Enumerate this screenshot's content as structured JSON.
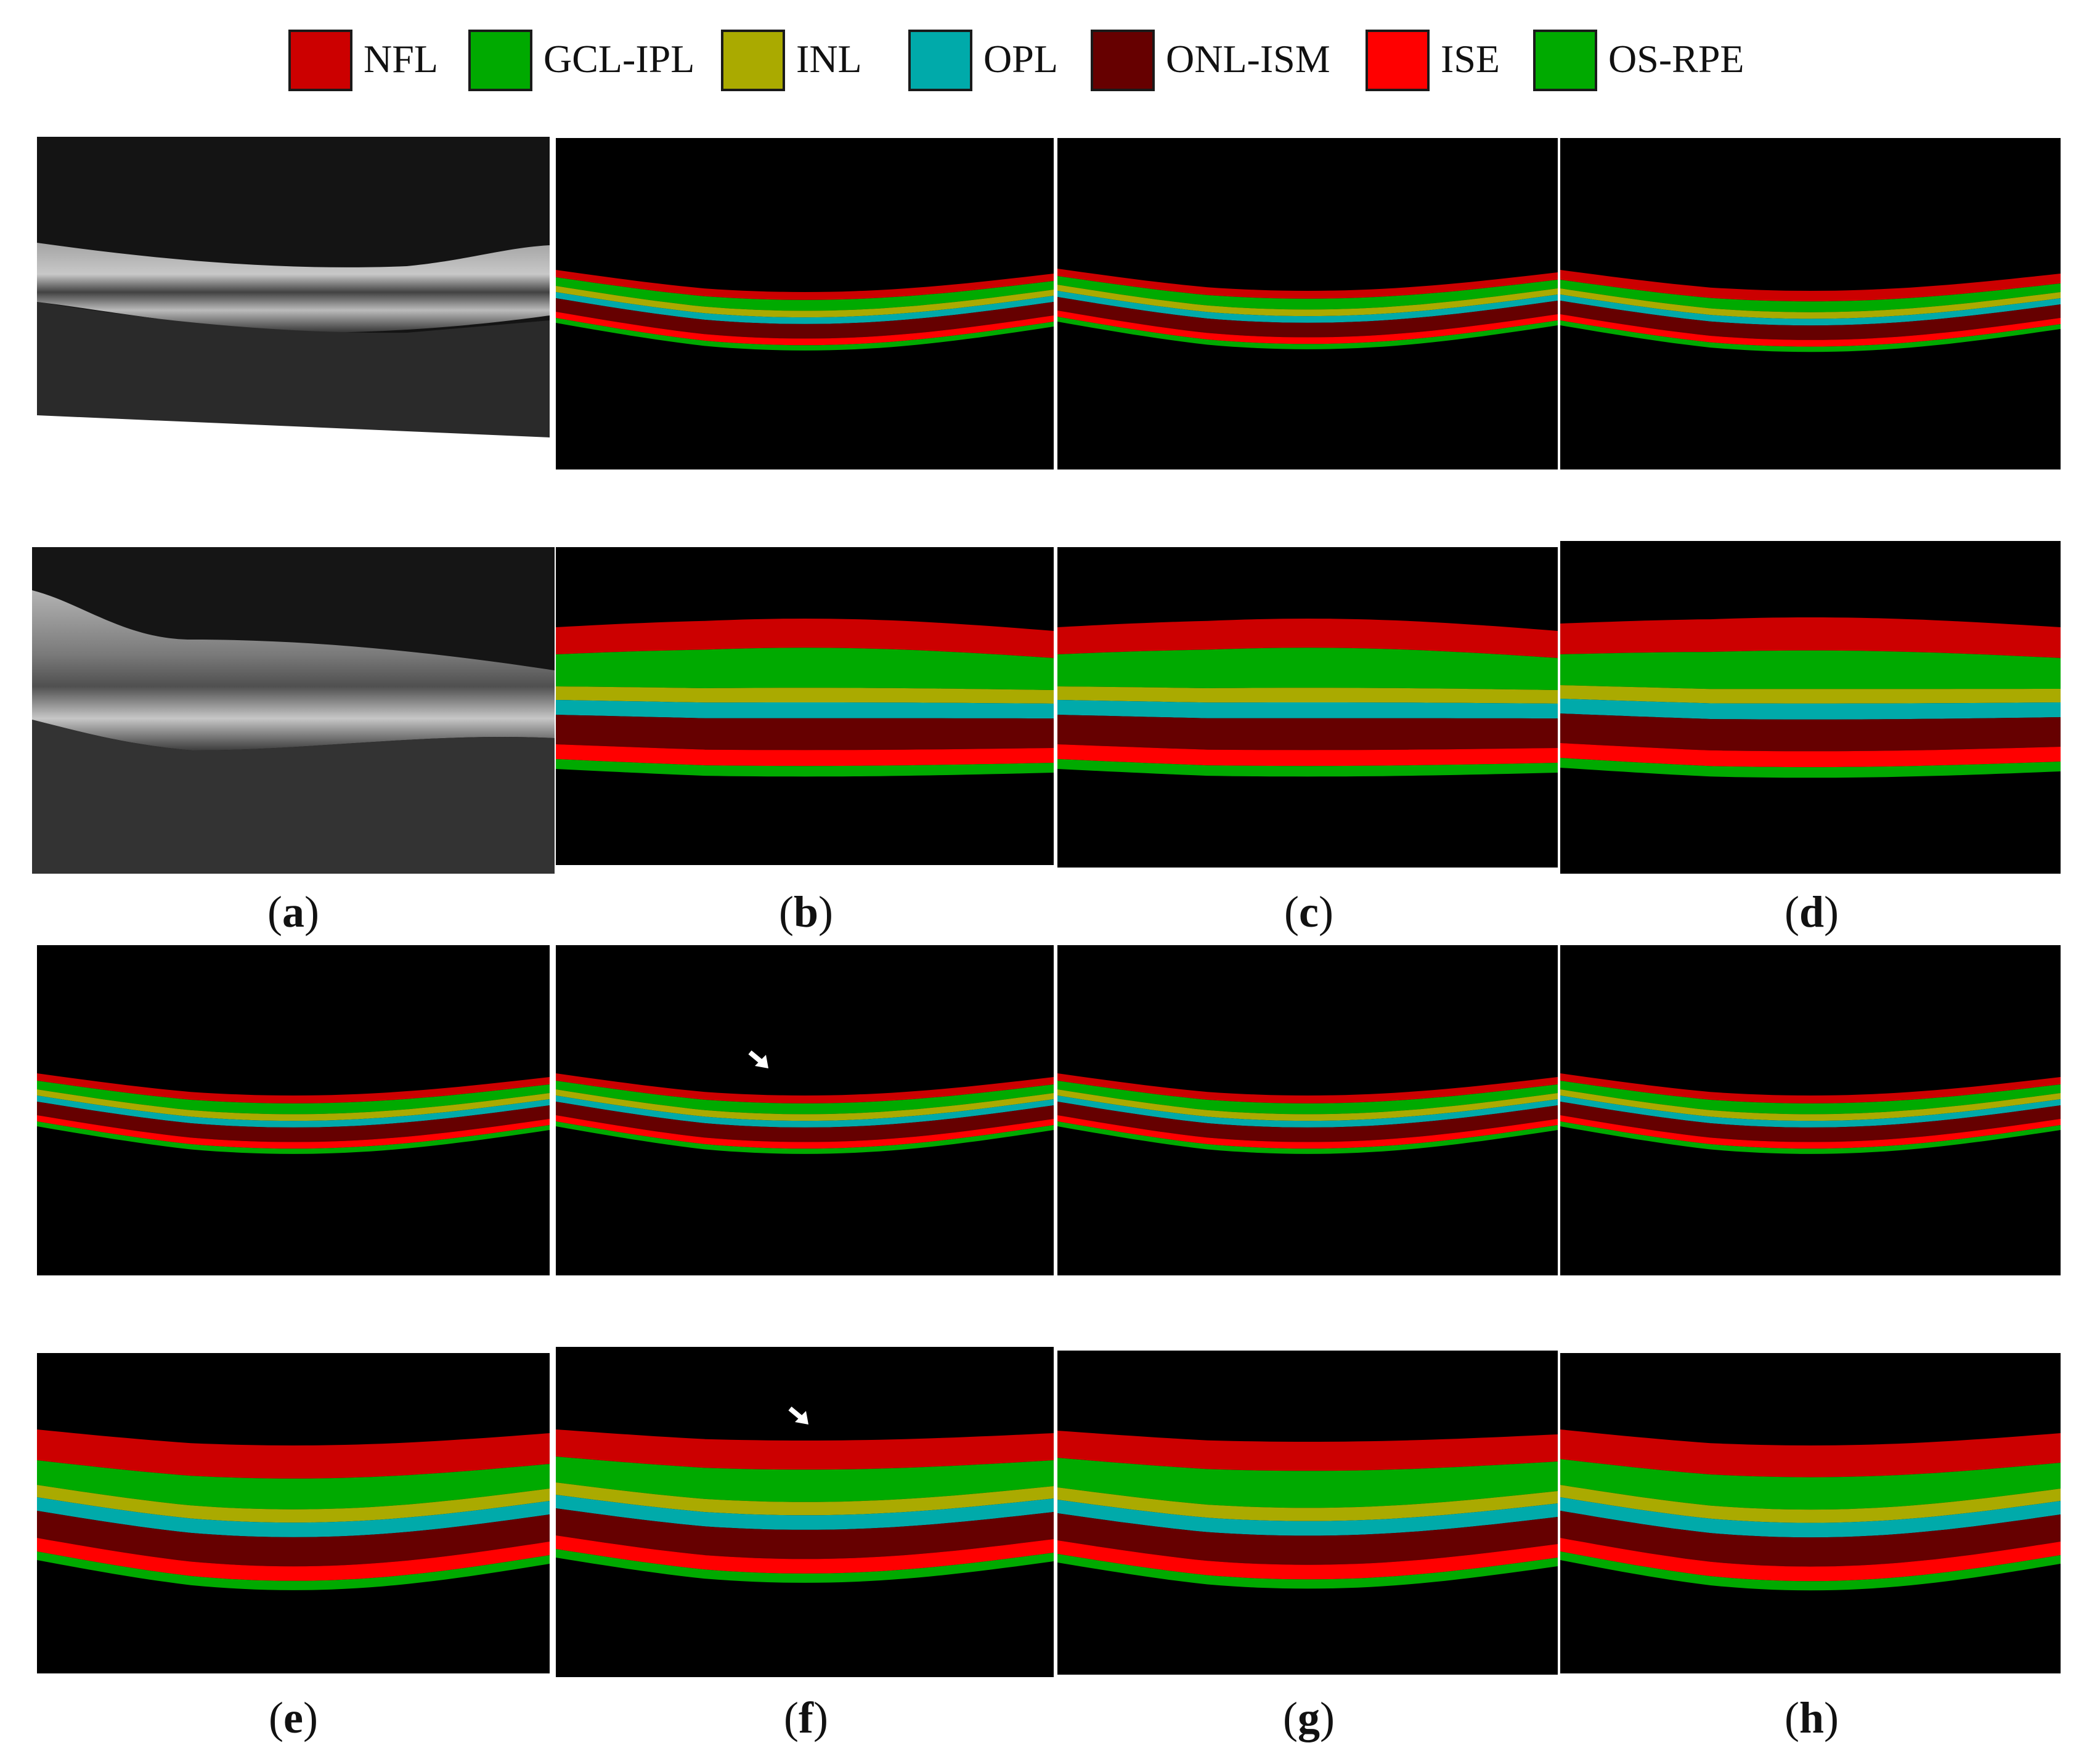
{
  "legend": [
    {
      "label": "NFL",
      "color": "#cc0000"
    },
    {
      "label": "GCL-IPL",
      "color": "#00aa00"
    },
    {
      "label": "INL",
      "color": "#aaaa00"
    },
    {
      "label": "OPL",
      "color": "#00aaaa"
    },
    {
      "label": "ONL-ISM",
      "color": "#660000"
    },
    {
      "label": "ISE",
      "color": "#ff0000"
    },
    {
      "label": "OS-RPE",
      "color": "#00aa00"
    }
  ],
  "layer_colors": [
    "#cc0000",
    "#00aa00",
    "#aaaa00",
    "#00aaaa",
    "#660000",
    "#ff0000",
    "#00aa00"
  ],
  "captions": [
    {
      "open": "(",
      "letter": "a",
      "close": ")"
    },
    {
      "open": "(",
      "letter": "b",
      "close": ")"
    },
    {
      "open": "(",
      "letter": "c",
      "close": ")"
    },
    {
      "open": "(",
      "letter": "d",
      "close": ")"
    },
    {
      "open": "(",
      "letter": "e",
      "close": ")"
    },
    {
      "open": "(",
      "letter": "f",
      "close": ")"
    },
    {
      "open": "(",
      "letter": "g",
      "close": ")"
    },
    {
      "open": "(",
      "letter": "h",
      "close": ")"
    }
  ]
}
